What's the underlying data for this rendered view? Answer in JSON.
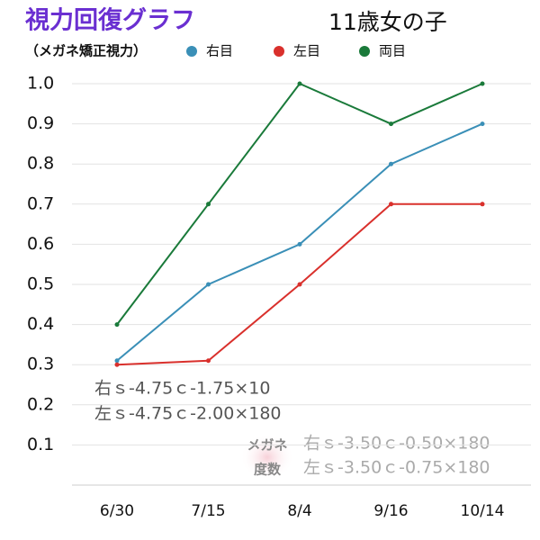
{
  "chart_data": {
    "type": "line",
    "title": "視力回復グラフ",
    "subtitle": "（メガネ矯正視力）",
    "header_right": "11歳女の子",
    "categories": [
      "6/30",
      "7/15",
      "8/4",
      "9/16",
      "10/14"
    ],
    "series": [
      {
        "name": "右目",
        "color": "#3a8fb7",
        "values": [
          0.31,
          0.5,
          0.6,
          0.8,
          0.9
        ]
      },
      {
        "name": "左目",
        "color": "#d9302c",
        "values": [
          0.3,
          0.31,
          0.5,
          0.7,
          0.7
        ]
      },
      {
        "name": "両目",
        "color": "#1a7a3a",
        "values": [
          0.4,
          0.7,
          1.0,
          0.9,
          1.0
        ]
      }
    ],
    "ylim": [
      0,
      1.0
    ],
    "yticks": [
      0.1,
      0.2,
      0.3,
      0.4,
      0.5,
      0.6,
      0.7,
      0.8,
      0.9,
      {
        "value": 1.0,
        "label": "1.0"
      }
    ],
    "grid": true,
    "annotations": [
      "右ｓ-4.75ｃ-1.75×10",
      "左ｓ-4.75ｃ-2.00×180"
    ],
    "glasses_label": [
      "メガネ",
      "度数"
    ],
    "glasses_annotations": [
      "右ｓ-3.50ｃ-0.50×180",
      "左ｓ-3.50ｃ-0.75×180"
    ]
  }
}
